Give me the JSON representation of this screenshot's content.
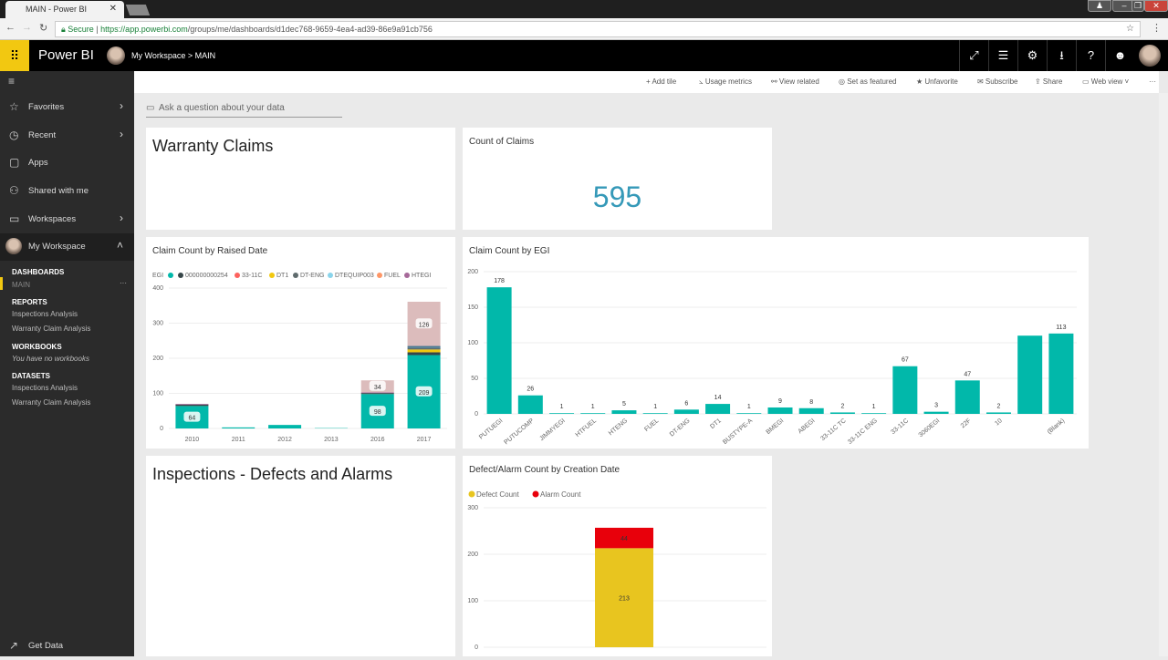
{
  "browser": {
    "tab_title": "MAIN - Power BI",
    "secure": "Secure",
    "url_host": "https://app.powerbi.com",
    "url_path": "/groups/me/dashboards/d1dec768-9659-4ea4-ad39-86e9a91cb756"
  },
  "header": {
    "app": "Power BI",
    "workspace": "My Workspace",
    "sep": ">",
    "dashboard": "MAIN"
  },
  "sidebar": {
    "nav": [
      {
        "label": "Favorites",
        "icon": "☆",
        "chev": "›"
      },
      {
        "label": "Recent",
        "icon": "◷",
        "chev": "›"
      },
      {
        "label": "Apps",
        "icon": "▢",
        "chev": ""
      },
      {
        "label": "Shared with me",
        "icon": "⚇",
        "chev": ""
      },
      {
        "label": "Workspaces",
        "icon": "▭",
        "chev": "›"
      },
      {
        "label": "My Workspace",
        "icon": "",
        "chev": "˄"
      }
    ],
    "dashboards_h": "DASHBOARDS",
    "dashboards": [
      "MAIN"
    ],
    "more": "···",
    "reports_h": "REPORTS",
    "reports": [
      "Inspections Analysis",
      "Warranty Claim Analysis"
    ],
    "workbooks_h": "WORKBOOKS",
    "workbooks_empty": "You have no workbooks",
    "datasets_h": "DATASETS",
    "datasets": [
      "Inspections Analysis",
      "Warranty Claim Analysis"
    ],
    "get_data": "Get Data"
  },
  "toolbar": [
    "+ Add tile",
    "⦣ Usage metrics",
    "⚯ View related",
    "◎ Set as featured",
    "★ Unfavorite",
    "✉ Subscribe",
    "⇪ Share",
    "▭ Web view ˅",
    "···"
  ],
  "qa_placeholder": "Ask a question about your data",
  "tiles": {
    "warranty": "Warranty Claims",
    "count_title": "Count of Claims",
    "count_value": "595",
    "raised_title": "Claim Count by Raised Date",
    "egi_title": "Claim Count by EGI",
    "inspections": "Inspections - Defects and Alarms",
    "defect_title": "Defect/Alarm Count by Creation Date"
  },
  "chart_data": [
    {
      "type": "bar",
      "stacked": true,
      "title": "Claim Count by Raised Date",
      "legend_title": "EGI",
      "categories": [
        "2010",
        "2011",
        "2012",
        "2013",
        "2016",
        "2017"
      ],
      "ylim": [
        0,
        400
      ],
      "yticks": [
        0,
        100,
        200,
        300,
        400
      ],
      "series": [
        {
          "name": "",
          "color": "#01b8aa",
          "values": [
            64,
            3,
            10,
            1,
            98,
            209
          ],
          "legend": true
        },
        {
          "name": "000000000254",
          "color": "#374649",
          "values": [
            4,
            0,
            0,
            0,
            3,
            8
          ],
          "legend": true
        },
        {
          "name": "33-11C",
          "color": "#fd625e",
          "values": [
            0,
            0,
            0,
            0,
            0,
            0
          ],
          "legend": true
        },
        {
          "name": "DT1",
          "color": "#f2c80f",
          "values": [
            0,
            0,
            0,
            0,
            0,
            8
          ],
          "legend": true
        },
        {
          "name": "DT-ENG",
          "color": "#5f6b6d",
          "values": [
            0,
            0,
            0,
            0,
            0,
            4
          ],
          "legend": true
        },
        {
          "name": "DTEQUIP003",
          "color": "#8ad4eb",
          "values": [
            0,
            0,
            0,
            0,
            0,
            0
          ],
          "legend": true
        },
        {
          "name": "FUEL",
          "color": "#fe9666",
          "values": [
            0,
            0,
            0,
            0,
            0,
            0
          ],
          "legend": true
        },
        {
          "name": "HTEGI",
          "color": "#a66999",
          "values": [
            2,
            0,
            0,
            0,
            2,
            0
          ],
          "legend": true
        },
        {
          "name": "",
          "color": "#4a7890",
          "values": [
            0,
            0,
            0,
            0,
            0,
            6
          ],
          "legend": false
        },
        {
          "name": "",
          "color": "#dcbcbc",
          "values": [
            0,
            0,
            0,
            0,
            34,
            126
          ],
          "legend": false
        }
      ],
      "labels": [
        [
          0,
          0
        ],
        [
          0,
          4
        ],
        [
          9,
          4
        ],
        [
          0,
          5
        ],
        [
          9,
          5
        ]
      ]
    },
    {
      "type": "bar",
      "title": "Claim Count by EGI",
      "categories": [
        "PUTUEGI",
        "PUTUCOMP",
        "JIMMYEGI",
        "HTFUEL",
        "HTENG",
        "FUEL",
        "DT-ENG",
        "DT1",
        "BUSTYPE-A",
        "BMEGI",
        "ABEGI",
        "33-11C TC",
        "33-11C ENG",
        "33-11C",
        "3060EGI",
        "22F",
        "10",
        "",
        "(Blank)"
      ],
      "values": [
        178,
        26,
        1,
        1,
        5,
        1,
        6,
        14,
        1,
        9,
        8,
        2,
        1,
        67,
        3,
        47,
        2,
        110,
        113
      ],
      "ylim": [
        0,
        200
      ],
      "yticks": [
        0,
        50,
        100,
        150,
        200
      ],
      "color": "#01b8aa"
    },
    {
      "type": "bar",
      "stacked": true,
      "title": "Defect/Alarm Count by Creation Date",
      "categories": [
        ""
      ],
      "ylim": [
        0,
        300
      ],
      "yticks": [
        0,
        100,
        200,
        300
      ],
      "series": [
        {
          "name": "Defect Count",
          "color": "#e8c51f",
          "values": [
            213
          ]
        },
        {
          "name": "Alarm Count",
          "color": "#e8000b",
          "values": [
            44
          ]
        }
      ]
    }
  ]
}
